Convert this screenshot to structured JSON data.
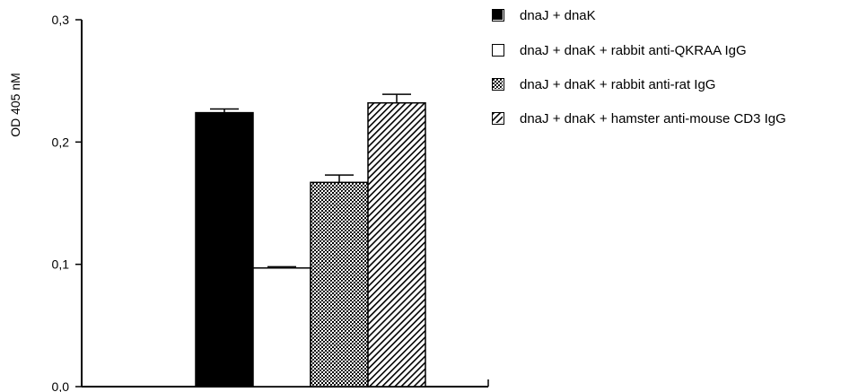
{
  "chart_data": {
    "type": "bar",
    "title": "",
    "xlabel": "",
    "ylabel": "OD 405 nM",
    "ylim": [
      0,
      0.3
    ],
    "yticks": [
      "0,0",
      "0,1",
      "0,2",
      "0,3"
    ],
    "grid": false,
    "legend_position": "top-right",
    "series": [
      {
        "name": "dnaJ + dnaK",
        "value": 0.224,
        "error": 0.003,
        "pattern": "solid-black",
        "pattern_name": "solid"
      },
      {
        "name": "dnaJ + dnaK + rabbit anti-QKRAA IgG",
        "value": 0.097,
        "error": 0.001,
        "pattern": "white",
        "pattern_name": "open"
      },
      {
        "name": "dnaJ + dnaK + rabbit anti-rat IgG",
        "value": 0.167,
        "error": 0.006,
        "pattern": "crosshatch",
        "pattern_name": "dotted"
      },
      {
        "name": "dnaJ + dnaK + hamster anti-mouse CD3 IgG",
        "value": 0.232,
        "error": 0.007,
        "pattern": "diagonal",
        "pattern_name": "hatched"
      }
    ]
  },
  "colors": {
    "ink": "#000000",
    "background": "#ffffff"
  }
}
